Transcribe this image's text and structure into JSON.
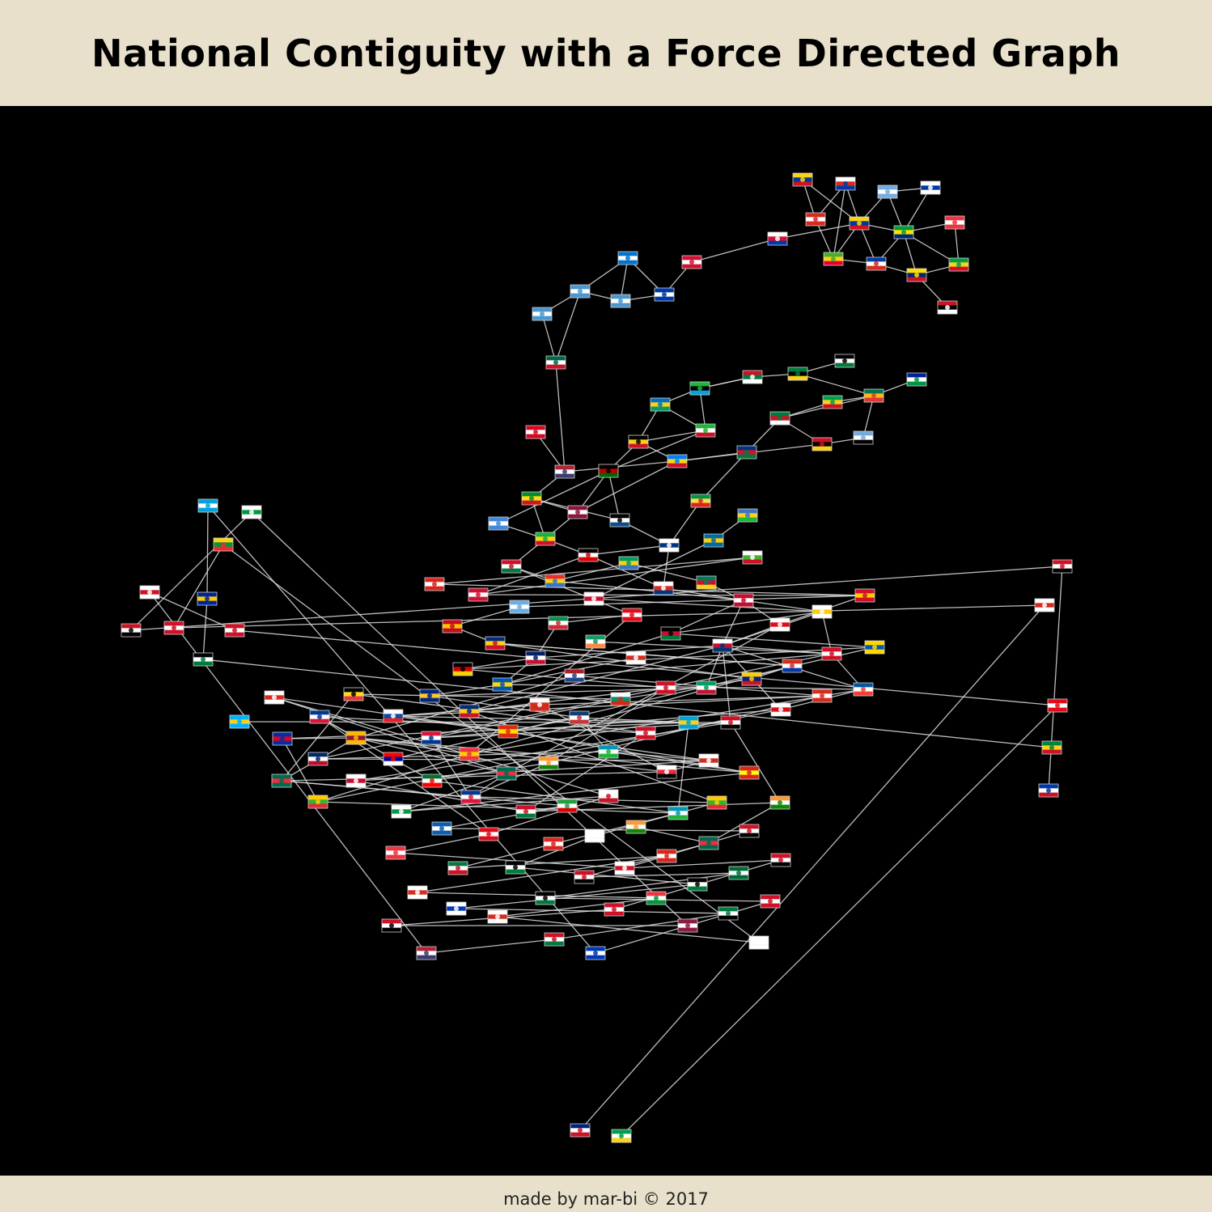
{
  "header": {
    "title": "National Contiguity with a Force Directed Graph"
  },
  "footer": {
    "credit": "made by mar-bi © 2017"
  },
  "graph": {
    "node_style": "country-flag",
    "link_color": "#dddddd",
    "node_count": 186
  }
}
